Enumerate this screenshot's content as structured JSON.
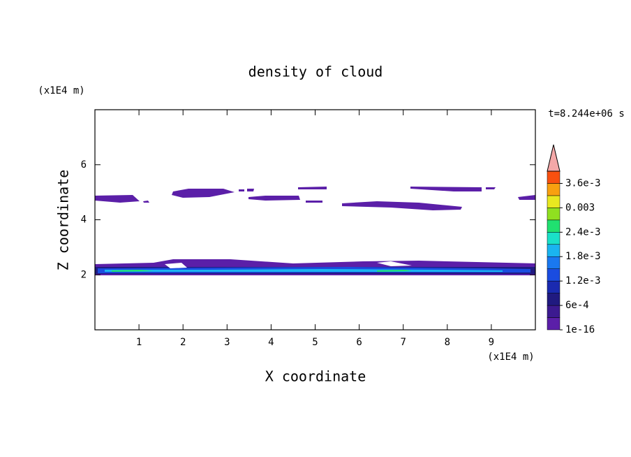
{
  "chart_data": {
    "type": "contour",
    "title": "density of cloud",
    "xlabel": "X coordinate",
    "ylabel": "Z coordinate",
    "xunit": "(x1E4 m)",
    "yunit": "(x1E4 m)",
    "time_label": "t=8.244e+06 s",
    "xlim": [
      0,
      10
    ],
    "xticks": [
      1,
      2,
      3,
      4,
      5,
      6,
      7,
      8,
      9
    ],
    "ylim": [
      0,
      8
    ],
    "yticks": [
      2,
      4,
      6
    ],
    "clim": [
      1e-16,
      0.0039
    ],
    "colorbar_ticks": [
      1e-16,
      {
        "value": 0.0006,
        "label": "6e-4"
      },
      {
        "value": 0.0012,
        "label": "1.2e-3"
      },
      {
        "value": 0.0018,
        "label": "1.8e-3"
      },
      {
        "value": 0.0024,
        "label": "2.4e-3"
      },
      0.003,
      {
        "value": 0.0036,
        "label": "3.6e-3"
      }
    ],
    "colors": [
      "#5b1fa8",
      "#3c1a90",
      "#201a80",
      "#1a2ab0",
      "#1a4ce0",
      "#1a78f0",
      "#1ab4f0",
      "#1ae0c8",
      "#20e070",
      "#90e020",
      "#e8e820",
      "#f8a010",
      "#f85010"
    ],
    "over_color": "#f4a8a8"
  }
}
